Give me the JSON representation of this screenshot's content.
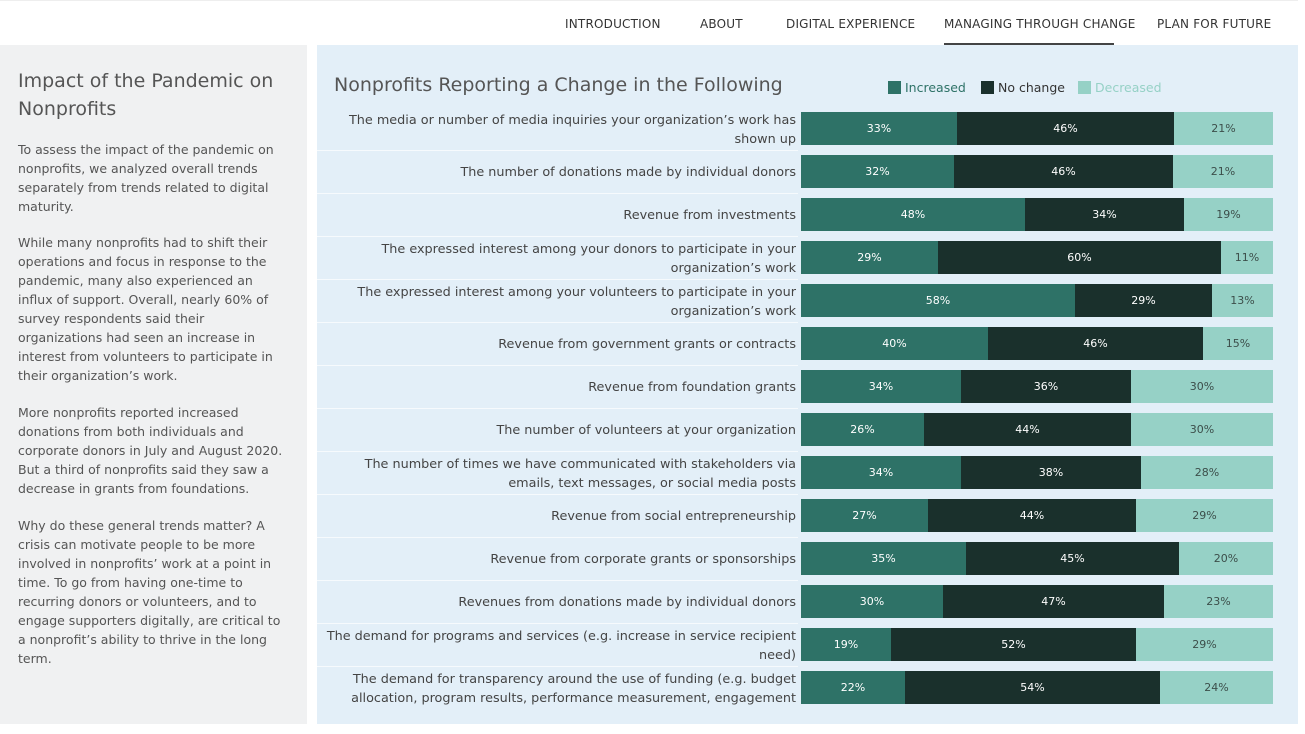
{
  "nav": {
    "items": [
      {
        "label": "INTRODUCTION"
      },
      {
        "label": "ABOUT"
      },
      {
        "label": "DIGITAL EXPERIENCE"
      },
      {
        "label": "MANAGING THROUGH CHANGE"
      },
      {
        "label": "PLAN FOR FUTURE"
      }
    ],
    "active": "MANAGING THROUGH CHANGE"
  },
  "left": {
    "title": "Impact of the Pandemic on Nonprofits",
    "paragraphs": [
      "To assess the impact of the pandemic on nonprofits, we analyzed overall trends separately from trends related to digital maturity.",
      "While many nonprofits had to shift their operations and focus in response to the pandemic, many also experienced an influx of support. Overall, nearly 60% of survey respondents said their organizations had seen an increase in interest from volunteers to participate in their organization’s work.",
      "More nonprofits reported increased donations from both individuals and corporate donors in July and August 2020. But a third of nonprofits said they saw a decrease in grants from foundations.",
      "Why do these general trends matter? A crisis can motivate people to be more involved in nonprofits’ work at a point in time. To go from having one-time to recurring donors or volunteers, and to engage supporters digitally, are critical to a nonprofit’s ability to thrive in the long term."
    ]
  },
  "colors": {
    "increased": "#2e7267",
    "no_change": "#1a302c",
    "decreased": "#96d1c6",
    "increased_text": "#ffffff",
    "no_change_text": "#ffffff",
    "decreased_text": "#3c4e4a"
  },
  "chart_data": {
    "type": "bar",
    "orientation": "horizontal",
    "stacked": true,
    "title": "Nonprofits Reporting a Change in the Following",
    "legend_position": "top",
    "categories": [
      "The media or number of media inquiries your organization’s work has shown up",
      "The number of donations made by individual donors",
      "Revenue from investments",
      "The expressed interest among your donors to participate in your organization’s work",
      "The expressed interest among your volunteers to participate in your organization’s work",
      "Revenue from government grants or contracts",
      "Revenue from foundation grants",
      "The number of volunteers at your organization",
      "The number of times we have communicated with stakeholders via emails, text messages, or social media posts",
      "Revenue from social entrepreneurship",
      "Revenue from corporate grants or sponsorships",
      "Revenues from donations made by individual donors",
      "The demand for programs and services (e.g. increase in service recipient need)",
      "The demand for transparency around the use of funding (e.g. budget allocation, program results, performance measurement, engagement"
    ],
    "series": [
      {
        "name": "Increased",
        "values": [
          33,
          32,
          48,
          29,
          58,
          40,
          34,
          26,
          34,
          27,
          35,
          30,
          19,
          22
        ]
      },
      {
        "name": "No change",
        "values": [
          46,
          46,
          34,
          60,
          29,
          46,
          36,
          44,
          38,
          44,
          45,
          47,
          52,
          54
        ]
      },
      {
        "name": "Decreased",
        "values": [
          21,
          21,
          19,
          11,
          13,
          15,
          30,
          30,
          28,
          29,
          20,
          23,
          29,
          24
        ]
      }
    ],
    "value_suffix": "%"
  }
}
